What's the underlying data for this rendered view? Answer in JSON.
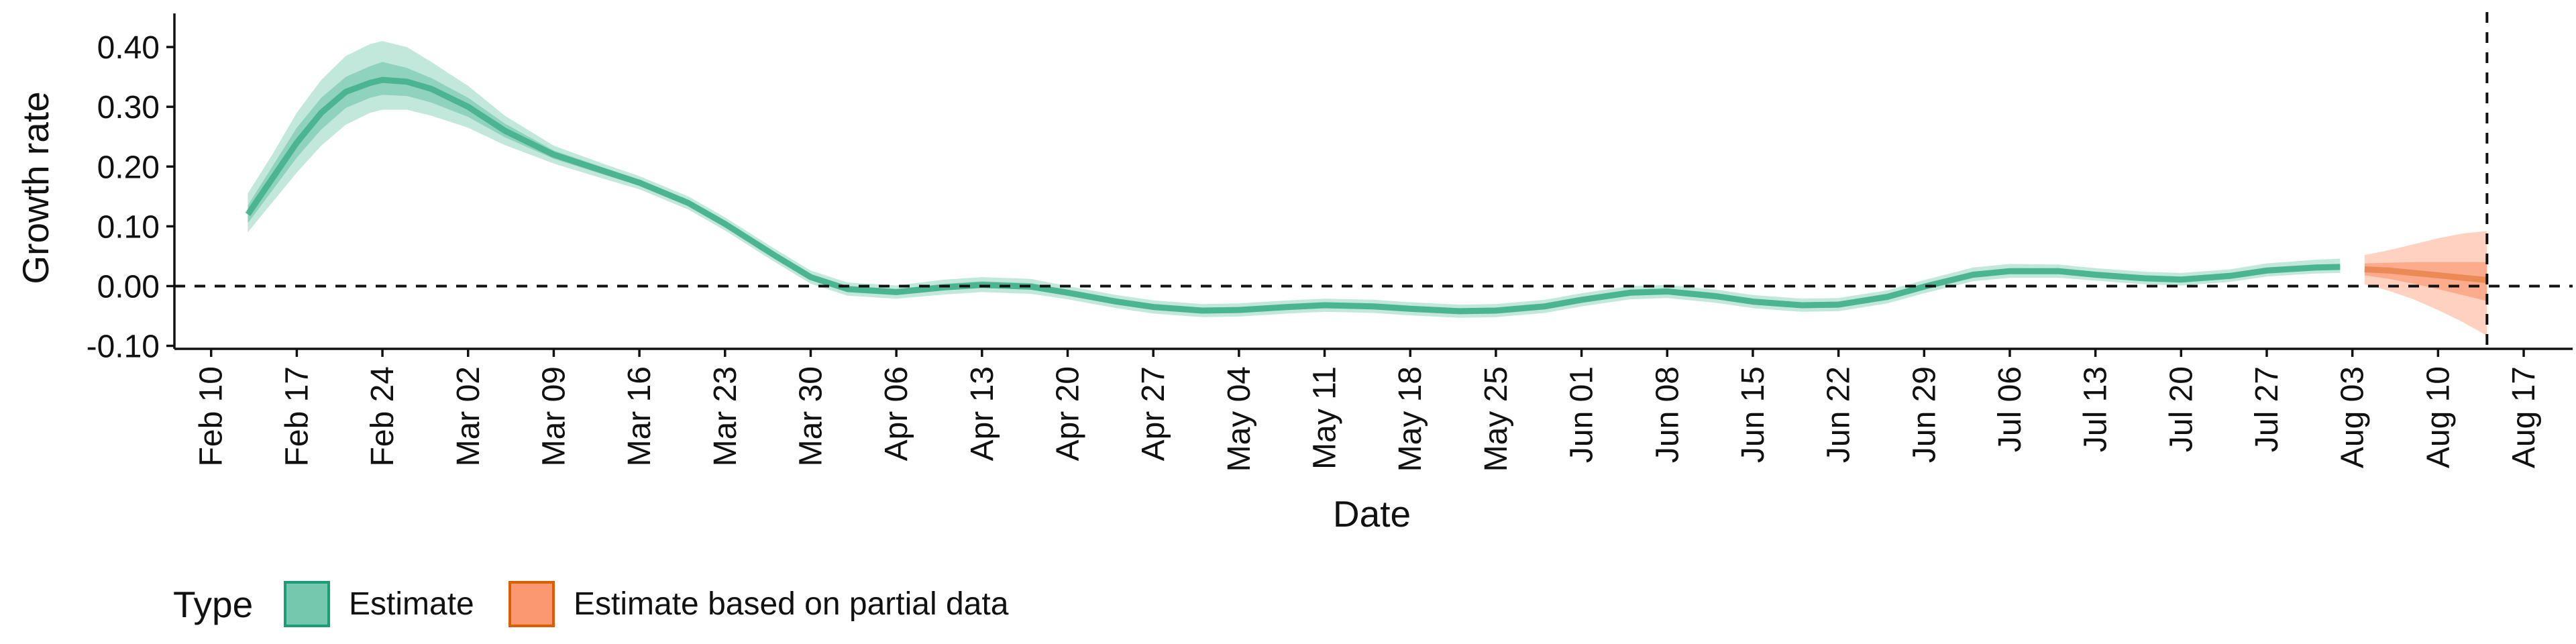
{
  "chart_data": {
    "type": "area",
    "xlabel": "Date",
    "ylabel": "Growth rate",
    "xlim": [
      "2020-02-07",
      "2020-08-21"
    ],
    "ylim": [
      -0.105,
      0.445
    ],
    "x_ticks": [
      "2020-02-10",
      "2020-02-17",
      "2020-02-24",
      "2020-03-02",
      "2020-03-09",
      "2020-03-16",
      "2020-03-23",
      "2020-03-30",
      "2020-04-06",
      "2020-04-13",
      "2020-04-20",
      "2020-04-27",
      "2020-05-04",
      "2020-05-11",
      "2020-05-18",
      "2020-05-25",
      "2020-06-01",
      "2020-06-08",
      "2020-06-15",
      "2020-06-22",
      "2020-06-29",
      "2020-07-06",
      "2020-07-13",
      "2020-07-20",
      "2020-07-27",
      "2020-08-03",
      "2020-08-10",
      "2020-08-17"
    ],
    "x_tick_labels": [
      "Feb 10",
      "Feb 17",
      "Feb 24",
      "Mar 02",
      "Mar 09",
      "Mar 16",
      "Mar 23",
      "Mar 30",
      "Apr 06",
      "Apr 13",
      "Apr 20",
      "Apr 27",
      "May 04",
      "May 11",
      "May 18",
      "May 25",
      "Jun 01",
      "Jun 08",
      "Jun 15",
      "Jun 22",
      "Jun 29",
      "Jul 06",
      "Jul 13",
      "Jul 20",
      "Jul 27",
      "Aug 03",
      "Aug 10",
      "Aug 17"
    ],
    "y_ticks": [
      0.4,
      0.3,
      0.2,
      0.1,
      0.0,
      -0.1
    ],
    "y_tick_labels": [
      "0.40",
      "0.30",
      "0.20",
      "0.10",
      "0.00",
      "-0.10"
    ],
    "reference_lines": {
      "horizontal_y": 0.0,
      "vertical_x": "2020-08-14",
      "style": "dashed"
    },
    "grid": false,
    "legend": {
      "title": "Type",
      "position": "bottom-left",
      "entries": [
        {
          "label": "Estimate",
          "color": "#66c2a5"
        },
        {
          "label": "Estimate based on partial data",
          "color": "#fc8d62"
        }
      ]
    },
    "series": [
      {
        "name": "Estimate",
        "color": "#66c2a5",
        "outer_fill": "#66c2a5",
        "inner_fill": "#3fae8a",
        "points": [
          {
            "x": "2020-02-13",
            "lo90": 0.09,
            "lo50": 0.105,
            "median": 0.12,
            "hi50": 0.135,
            "hi90": 0.155
          },
          {
            "x": "2020-02-15",
            "lo90": 0.14,
            "lo50": 0.16,
            "median": 0.18,
            "hi50": 0.2,
            "hi90": 0.22
          },
          {
            "x": "2020-02-17",
            "lo90": 0.19,
            "lo50": 0.215,
            "median": 0.24,
            "hi50": 0.265,
            "hi90": 0.29
          },
          {
            "x": "2020-02-19",
            "lo90": 0.235,
            "lo50": 0.262,
            "median": 0.29,
            "hi50": 0.315,
            "hi90": 0.345
          },
          {
            "x": "2020-02-21",
            "lo90": 0.27,
            "lo50": 0.298,
            "median": 0.325,
            "hi50": 0.35,
            "hi90": 0.385
          },
          {
            "x": "2020-02-23",
            "lo90": 0.29,
            "lo50": 0.315,
            "median": 0.34,
            "hi50": 0.368,
            "hi90": 0.405
          },
          {
            "x": "2020-02-24",
            "lo90": 0.295,
            "lo50": 0.32,
            "median": 0.345,
            "hi50": 0.375,
            "hi90": 0.41
          },
          {
            "x": "2020-02-26",
            "lo90": 0.295,
            "lo50": 0.318,
            "median": 0.342,
            "hi50": 0.365,
            "hi90": 0.4
          },
          {
            "x": "2020-02-28",
            "lo90": 0.285,
            "lo50": 0.307,
            "median": 0.33,
            "hi50": 0.348,
            "hi90": 0.375
          },
          {
            "x": "2020-03-02",
            "lo90": 0.265,
            "lo50": 0.283,
            "median": 0.3,
            "hi50": 0.315,
            "hi90": 0.335
          },
          {
            "x": "2020-03-05",
            "lo90": 0.236,
            "lo50": 0.249,
            "median": 0.26,
            "hi50": 0.272,
            "hi90": 0.285
          },
          {
            "x": "2020-03-09",
            "lo90": 0.205,
            "lo50": 0.213,
            "median": 0.22,
            "hi50": 0.227,
            "hi90": 0.235
          },
          {
            "x": "2020-03-13",
            "lo90": 0.18,
            "lo50": 0.187,
            "median": 0.193,
            "hi50": 0.199,
            "hi90": 0.205
          },
          {
            "x": "2020-03-16",
            "lo90": 0.162,
            "lo50": 0.168,
            "median": 0.173,
            "hi50": 0.178,
            "hi90": 0.184
          },
          {
            "x": "2020-03-20",
            "lo90": 0.128,
            "lo50": 0.134,
            "median": 0.139,
            "hi50": 0.144,
            "hi90": 0.15
          },
          {
            "x": "2020-03-23",
            "lo90": 0.093,
            "lo50": 0.099,
            "median": 0.104,
            "hi50": 0.109,
            "hi90": 0.115
          },
          {
            "x": "2020-03-27",
            "lo90": 0.041,
            "lo50": 0.047,
            "median": 0.052,
            "hi50": 0.057,
            "hi90": 0.063
          },
          {
            "x": "2020-03-30",
            "lo90": 0.004,
            "lo50": 0.01,
            "median": 0.015,
            "hi50": 0.02,
            "hi90": 0.026
          },
          {
            "x": "2020-04-02",
            "lo90": -0.016,
            "lo50": -0.01,
            "median": -0.005,
            "hi50": 0.0,
            "hi90": 0.006
          },
          {
            "x": "2020-04-06",
            "lo90": -0.021,
            "lo50": -0.015,
            "median": -0.01,
            "hi50": -0.005,
            "hi90": 0.001
          },
          {
            "x": "2020-04-10",
            "lo90": -0.014,
            "lo50": -0.007,
            "median": -0.002,
            "hi50": 0.004,
            "hi90": 0.011
          },
          {
            "x": "2020-04-13",
            "lo90": -0.01,
            "lo50": -0.003,
            "median": 0.002,
            "hi50": 0.008,
            "hi90": 0.015
          },
          {
            "x": "2020-04-17",
            "lo90": -0.013,
            "lo50": -0.006,
            "median": -0.001,
            "hi50": 0.005,
            "hi90": 0.012
          },
          {
            "x": "2020-04-20",
            "lo90": -0.022,
            "lo50": -0.016,
            "median": -0.011,
            "hi50": -0.006,
            "hi90": 0.0
          },
          {
            "x": "2020-04-24",
            "lo90": -0.037,
            "lo50": -0.031,
            "median": -0.026,
            "hi50": -0.021,
            "hi90": -0.015
          },
          {
            "x": "2020-04-27",
            "lo90": -0.046,
            "lo50": -0.04,
            "median": -0.035,
            "hi50": -0.03,
            "hi90": -0.024
          },
          {
            "x": "2020-05-01",
            "lo90": -0.052,
            "lo50": -0.046,
            "median": -0.041,
            "hi50": -0.036,
            "hi90": -0.03
          },
          {
            "x": "2020-05-04",
            "lo90": -0.051,
            "lo50": -0.045,
            "median": -0.04,
            "hi50": -0.035,
            "hi90": -0.029
          },
          {
            "x": "2020-05-08",
            "lo90": -0.046,
            "lo50": -0.04,
            "median": -0.035,
            "hi50": -0.03,
            "hi90": -0.024
          },
          {
            "x": "2020-05-11",
            "lo90": -0.043,
            "lo50": -0.037,
            "median": -0.032,
            "hi50": -0.027,
            "hi90": -0.021
          },
          {
            "x": "2020-05-15",
            "lo90": -0.045,
            "lo50": -0.039,
            "median": -0.034,
            "hi50": -0.029,
            "hi90": -0.023
          },
          {
            "x": "2020-05-18",
            "lo90": -0.049,
            "lo50": -0.043,
            "median": -0.038,
            "hi50": -0.033,
            "hi90": -0.027
          },
          {
            "x": "2020-05-22",
            "lo90": -0.053,
            "lo50": -0.047,
            "median": -0.042,
            "hi50": -0.037,
            "hi90": -0.031
          },
          {
            "x": "2020-05-25",
            "lo90": -0.052,
            "lo50": -0.046,
            "median": -0.041,
            "hi50": -0.036,
            "hi90": -0.03
          },
          {
            "x": "2020-05-29",
            "lo90": -0.045,
            "lo50": -0.039,
            "median": -0.034,
            "hi50": -0.029,
            "hi90": -0.023
          },
          {
            "x": "2020-06-01",
            "lo90": -0.034,
            "lo50": -0.028,
            "median": -0.023,
            "hi50": -0.018,
            "hi90": -0.012
          },
          {
            "x": "2020-06-05",
            "lo90": -0.022,
            "lo50": -0.016,
            "median": -0.011,
            "hi50": -0.006,
            "hi90": 0.0
          },
          {
            "x": "2020-06-08",
            "lo90": -0.02,
            "lo50": -0.014,
            "median": -0.009,
            "hi50": -0.004,
            "hi90": 0.002
          },
          {
            "x": "2020-06-12",
            "lo90": -0.028,
            "lo50": -0.022,
            "median": -0.017,
            "hi50": -0.012,
            "hi90": -0.006
          },
          {
            "x": "2020-06-15",
            "lo90": -0.037,
            "lo50": -0.031,
            "median": -0.026,
            "hi50": -0.021,
            "hi90": -0.015
          },
          {
            "x": "2020-06-19",
            "lo90": -0.043,
            "lo50": -0.037,
            "median": -0.032,
            "hi50": -0.027,
            "hi90": -0.021
          },
          {
            "x": "2020-06-22",
            "lo90": -0.042,
            "lo50": -0.036,
            "median": -0.031,
            "hi50": -0.026,
            "hi90": -0.02
          },
          {
            "x": "2020-06-26",
            "lo90": -0.029,
            "lo50": -0.023,
            "median": -0.018,
            "hi50": -0.013,
            "hi90": -0.007
          },
          {
            "x": "2020-06-29",
            "lo90": -0.012,
            "lo50": -0.006,
            "median": -0.001,
            "hi50": 0.004,
            "hi90": 0.01
          },
          {
            "x": "2020-07-03",
            "lo90": 0.008,
            "lo50": 0.014,
            "median": 0.019,
            "hi50": 0.024,
            "hi90": 0.031
          },
          {
            "x": "2020-07-06",
            "lo90": 0.014,
            "lo50": 0.02,
            "median": 0.025,
            "hi50": 0.03,
            "hi90": 0.037
          },
          {
            "x": "2020-07-10",
            "lo90": 0.014,
            "lo50": 0.02,
            "median": 0.025,
            "hi50": 0.03,
            "hi90": 0.036
          },
          {
            "x": "2020-07-13",
            "lo90": 0.009,
            "lo50": 0.014,
            "median": 0.019,
            "hi50": 0.024,
            "hi90": 0.03
          },
          {
            "x": "2020-07-17",
            "lo90": 0.003,
            "lo50": 0.008,
            "median": 0.013,
            "hi50": 0.018,
            "hi90": 0.024
          },
          {
            "x": "2020-07-20",
            "lo90": 0.001,
            "lo50": 0.006,
            "median": 0.011,
            "hi50": 0.016,
            "hi90": 0.022
          },
          {
            "x": "2020-07-24",
            "lo90": 0.007,
            "lo50": 0.012,
            "median": 0.017,
            "hi50": 0.022,
            "hi90": 0.028
          },
          {
            "x": "2020-07-27",
            "lo90": 0.016,
            "lo50": 0.021,
            "median": 0.026,
            "hi50": 0.031,
            "hi90": 0.038
          },
          {
            "x": "2020-07-31",
            "lo90": 0.021,
            "lo50": 0.026,
            "median": 0.031,
            "hi50": 0.036,
            "hi90": 0.044
          },
          {
            "x": "2020-08-02",
            "lo90": 0.022,
            "lo50": 0.027,
            "median": 0.032,
            "hi50": 0.037,
            "hi90": 0.046
          }
        ]
      },
      {
        "name": "Estimate based on partial data",
        "color": "#fc8d62",
        "outer_fill": "#fc8d62",
        "inner_fill": "#e8844e",
        "points": [
          {
            "x": "2020-08-04",
            "lo90": 0.003,
            "lo50": 0.018,
            "median": 0.028,
            "hi50": 0.038,
            "hi90": 0.052
          },
          {
            "x": "2020-08-06",
            "lo90": -0.008,
            "lo50": 0.012,
            "median": 0.026,
            "hi50": 0.039,
            "hi90": 0.06
          },
          {
            "x": "2020-08-08",
            "lo90": -0.022,
            "lo50": 0.004,
            "median": 0.022,
            "hi50": 0.04,
            "hi90": 0.07
          },
          {
            "x": "2020-08-10",
            "lo90": -0.04,
            "lo50": -0.005,
            "median": 0.018,
            "hi50": 0.04,
            "hi90": 0.08
          },
          {
            "x": "2020-08-12",
            "lo90": -0.06,
            "lo50": -0.015,
            "median": 0.014,
            "hi50": 0.04,
            "hi90": 0.088
          },
          {
            "x": "2020-08-14",
            "lo90": -0.083,
            "lo50": -0.025,
            "median": 0.01,
            "hi50": 0.04,
            "hi90": 0.092
          }
        ]
      }
    ]
  }
}
